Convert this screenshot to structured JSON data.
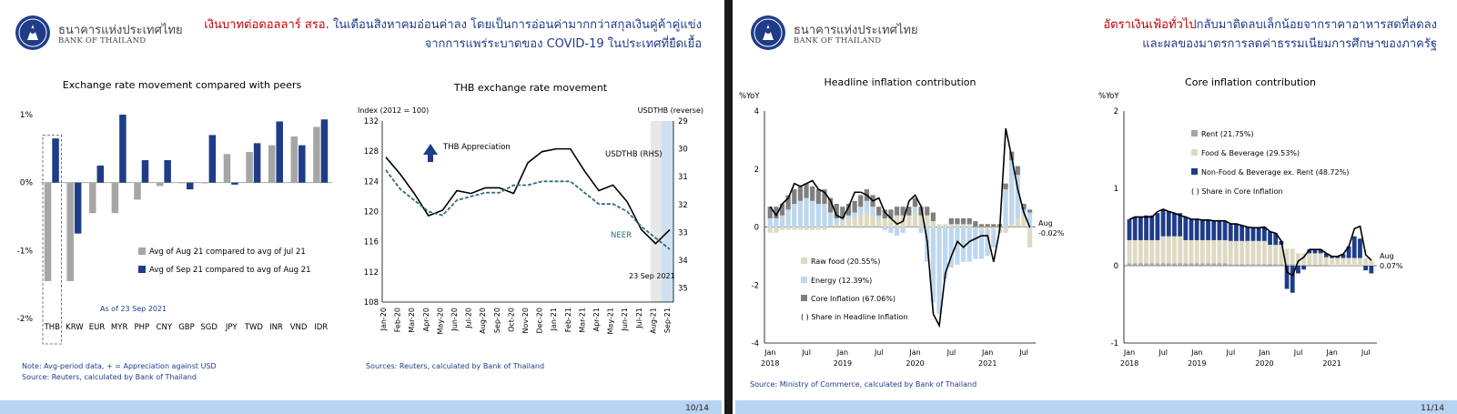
{
  "colors": {
    "navy": "#1f3c88",
    "gray": "#a6a6a6",
    "red": "#c00000",
    "teal": "#2e6d7a",
    "light_blue": "#bdd7ee",
    "beige": "#ddd9c3",
    "dark_gray": "#7f7f7f",
    "footer": "#b7d3f2"
  },
  "left": {
    "logo_th": "ธนาคารแห่งประเทศไทย",
    "logo_en": "BANK OF THAILAND",
    "headline_red": "เงินบาทต่อดอลลาร์ สรอ.",
    "headline_rest": " ในเดือนสิงหาคมอ่อนค่าลง โดยเป็นการอ่อนค่ามากกว่าสกุลเงินคู่ค้าคู่แข่ง",
    "headline_line2": "จากการแพร่ระบาดของ COVID-19 ในประเทศที่ยืดเยื้อ",
    "note1": "Note: Avg-period data, + = Appreciation against USD",
    "note2": "Source: Reuters, calculated by Bank of Thailand",
    "source_right": "Sources: Reuters, calculated by Bank of Thailand",
    "page": "10/14"
  },
  "right": {
    "logo_th": "ธนาคารแห่งประเทศไทย",
    "logo_en": "BANK OF THAILAND",
    "headline_red": "อัตราเงินเฟ้อทั่วไป",
    "headline_rest": "กลับมาติดลบเล็กน้อยจากราคาอาหารสดที่ลดลง",
    "headline_line2": "และผลของมาตรการลดค่าธรรมเนียมการศึกษาของภาครัฐ",
    "source": "Source: Ministry of Commerce, calculated by Bank of Thailand",
    "page": "11/14"
  },
  "chart_data": [
    {
      "type": "bar",
      "title": "Exchange rate movement compared with peers",
      "categories": [
        "THB",
        "KRW",
        "EUR",
        "MYR",
        "PHP",
        "CNY",
        "GBP",
        "SGD",
        "JPY",
        "TWD",
        "INR",
        "VND",
        "IDR"
      ],
      "series": [
        {
          "name": "Avg of Aug 21 compared to avg of Jul 21",
          "color": "#a6a6a6",
          "values": [
            -1.45,
            -1.45,
            -0.45,
            -0.45,
            -0.25,
            -0.05,
            0.0,
            0.0,
            0.42,
            0.45,
            0.55,
            0.68,
            0.82
          ]
        },
        {
          "name": "Avg of Sep 21 compared to avg of Aug 21",
          "color": "#1f3c88",
          "values": [
            0.65,
            -0.75,
            0.25,
            1.0,
            0.33,
            0.33,
            -0.1,
            0.7,
            -0.03,
            0.58,
            0.9,
            0.55,
            0.93
          ]
        }
      ],
      "yticks": [
        "1%",
        "0%",
        "-1%",
        "-2%"
      ],
      "ylim": [
        -2,
        1
      ],
      "annotation": "As of 23 Sep 2021",
      "legend": "lower-right"
    },
    {
      "type": "line",
      "title": "THB exchange rate movement",
      "ylabel_left": "Index (2012 = 100)",
      "ylabel_right": "USDTHB (reverse)",
      "ylim_left": [
        108,
        132
      ],
      "ylim_right": [
        35.5,
        29
      ],
      "yticks_left": [
        "132",
        "128",
        "124",
        "120",
        "116",
        "112",
        "108"
      ],
      "yticks_right": [
        "29",
        "30",
        "31",
        "32",
        "33",
        "34",
        "35"
      ],
      "x": [
        "Jan-20",
        "Feb-20",
        "Mar-20",
        "Apr-20",
        "May-20",
        "Jun-20",
        "Jul-20",
        "Aug-20",
        "Sep-20",
        "Oct-20",
        "Nov-20",
        "Dec-20",
        "Jan-21",
        "Feb-21",
        "Mar-21",
        "Apr-21",
        "May-21",
        "Jun-21",
        "Jul-21",
        "Aug-21",
        "Sep-21"
      ],
      "series": [
        {
          "name": "USDTHB (RHS)",
          "axis": "right",
          "color": "#000000",
          "values": [
            30.3,
            30.9,
            31.6,
            32.4,
            32.2,
            31.5,
            31.6,
            31.4,
            31.4,
            31.6,
            30.5,
            30.1,
            30.0,
            30.0,
            30.8,
            31.5,
            31.3,
            31.9,
            32.9,
            33.4,
            32.9
          ]
        },
        {
          "name": "NEER",
          "axis": "left",
          "color": "#2e6d7a",
          "values": [
            125.5,
            123.0,
            121.5,
            120.0,
            119.5,
            121.5,
            122.0,
            122.5,
            122.5,
            123.5,
            123.5,
            124.0,
            124.0,
            124.0,
            122.5,
            121.0,
            121.0,
            120.0,
            118.0,
            116.5,
            115.0
          ]
        }
      ],
      "annotations": [
        "THB Appreciation",
        "USDTHB (RHS)",
        "NEER",
        "23 Sep 2021"
      ]
    },
    {
      "type": "bar",
      "title": "Headline inflation contribution",
      "ylabel": "%YoY",
      "ylim": [
        -4,
        4
      ],
      "yticks": [
        "4",
        "2",
        "0",
        "-2",
        "-4"
      ],
      "x_labels": [
        "Jan",
        "Jul",
        "Jan",
        "Jul",
        "Jan",
        "Jul",
        "Jan",
        "Jul"
      ],
      "year_labels": [
        "2018",
        "2019",
        "2020",
        "2021"
      ],
      "months": [
        "2018-01",
        "2018-02",
        "2018-03",
        "2018-04",
        "2018-05",
        "2018-06",
        "2018-07",
        "2018-08",
        "2018-09",
        "2018-10",
        "2018-11",
        "2018-12",
        "2019-01",
        "2019-02",
        "2019-03",
        "2019-04",
        "2019-05",
        "2019-06",
        "2019-07",
        "2019-08",
        "2019-09",
        "2019-10",
        "2019-11",
        "2019-12",
        "2020-01",
        "2020-02",
        "2020-03",
        "2020-04",
        "2020-05",
        "2020-06",
        "2020-07",
        "2020-08",
        "2020-09",
        "2020-10",
        "2020-11",
        "2020-12",
        "2021-01",
        "2021-02",
        "2021-03",
        "2021-04",
        "2021-05",
        "2021-06",
        "2021-07",
        "2021-08"
      ],
      "series": [
        {
          "name": "Raw food (20.55%)",
          "color": "#ddd9c3",
          "values": [
            -0.2,
            -0.2,
            -0.1,
            -0.1,
            -0.1,
            -0.1,
            -0.1,
            -0.1,
            -0.1,
            -0.1,
            0.0,
            0.1,
            0.2,
            0.3,
            0.3,
            0.4,
            0.5,
            0.4,
            0.3,
            0.3,
            0.3,
            0.4,
            0.4,
            0.4,
            0.5,
            0.4,
            0.4,
            0.2,
            0.1,
            0.1,
            0.1,
            0.1,
            0.1,
            0.1,
            0.0,
            -0.1,
            -0.1,
            -0.1,
            -0.1,
            -0.2,
            0.1,
            0.3,
            0.4,
            -0.7
          ]
        },
        {
          "name": "Energy (12.39%)",
          "color": "#bdd7ee",
          "values": [
            0.3,
            0.3,
            0.4,
            0.6,
            0.8,
            0.9,
            1.0,
            0.9,
            0.8,
            0.8,
            0.5,
            0.2,
            0.1,
            0.1,
            0.2,
            0.3,
            0.4,
            0.3,
            0.1,
            -0.1,
            -0.2,
            -0.3,
            -0.2,
            0.0,
            0.2,
            -0.2,
            -1.2,
            -2.6,
            -3.0,
            -1.8,
            -1.4,
            -1.3,
            -1.2,
            -1.2,
            -1.1,
            -1.0,
            -0.9,
            -0.6,
            -0.1,
            1.3,
            2.2,
            1.5,
            0.2,
            0.5
          ]
        },
        {
          "name": "Core Inflation (67.06%)",
          "color": "#7f7f7f",
          "values": [
            0.4,
            0.4,
            0.4,
            0.5,
            0.5,
            0.5,
            0.5,
            0.5,
            0.5,
            0.5,
            0.5,
            0.5,
            0.4,
            0.4,
            0.4,
            0.4,
            0.4,
            0.4,
            0.3,
            0.3,
            0.3,
            0.3,
            0.3,
            0.3,
            0.3,
            0.3,
            0.3,
            0.3,
            0.0,
            0.0,
            0.2,
            0.2,
            0.2,
            0.2,
            0.2,
            0.1,
            0.1,
            0.1,
            0.1,
            0.2,
            0.3,
            0.3,
            0.2,
            0.1
          ]
        },
        {
          "name": "Headline",
          "color": "#000000",
          "values": [
            0.7,
            0.4,
            0.8,
            1.0,
            1.5,
            1.4,
            1.5,
            1.6,
            1.3,
            1.2,
            0.9,
            0.4,
            0.3,
            0.7,
            1.2,
            1.2,
            1.1,
            0.9,
            1.0,
            0.5,
            0.3,
            0.1,
            0.2,
            0.9,
            1.1,
            0.7,
            -0.5,
            -3.0,
            -3.4,
            -1.6,
            -1.0,
            -0.5,
            -0.7,
            -0.5,
            -0.4,
            -0.3,
            -0.3,
            -1.2,
            -0.1,
            3.4,
            2.4,
            1.3,
            0.5,
            -0.02
          ]
        }
      ],
      "annotations": [
        "( ) Share in Headline Inflation",
        "Aug",
        "-0.02%"
      ],
      "legend": "lower-left"
    },
    {
      "type": "bar",
      "title": "Core inflation contribution",
      "ylabel": "%YoY",
      "ylim": [
        -1,
        2
      ],
      "yticks": [
        "2",
        "1",
        "0",
        "-1"
      ],
      "x_labels": [
        "Jan",
        "Jul",
        "Jan",
        "Jul",
        "Jan",
        "Jul",
        "Jan",
        "Jul"
      ],
      "year_labels": [
        "2018",
        "2019",
        "2020",
        "2021"
      ],
      "series": [
        {
          "name": "Rent (21.75%)",
          "color": "#a6a6a6",
          "values": [
            0.03,
            0.03,
            0.03,
            0.03,
            0.03,
            0.03,
            0.03,
            0.03,
            0.03,
            0.03,
            0.03,
            0.03,
            0.03,
            0.03,
            0.03,
            0.03,
            0.03,
            0.03,
            0.02,
            0.02,
            0.02,
            0.02,
            0.02,
            0.02,
            0.02,
            0.02,
            0.02,
            0.02,
            0.02,
            0.02,
            0.01,
            0.01,
            0.01,
            0.01,
            0.01,
            0.01,
            0.0,
            0.0,
            0.0,
            0.0,
            0.0,
            0.0,
            0.0,
            0.0
          ]
        },
        {
          "name": "Food & Beverage (29.53%)",
          "color": "#ddd9c3",
          "values": [
            0.3,
            0.3,
            0.3,
            0.3,
            0.3,
            0.3,
            0.35,
            0.35,
            0.35,
            0.35,
            0.3,
            0.3,
            0.3,
            0.3,
            0.3,
            0.3,
            0.3,
            0.3,
            0.3,
            0.3,
            0.3,
            0.3,
            0.3,
            0.3,
            0.3,
            0.25,
            0.25,
            0.25,
            0.2,
            0.2,
            0.15,
            0.15,
            0.15,
            0.15,
            0.15,
            0.1,
            0.1,
            0.1,
            0.1,
            0.1,
            0.1,
            0.1,
            0.1,
            0.08
          ]
        },
        {
          "name": "Non-Food & Beverage ex. Rent (48.72%)",
          "color": "#1f3c88",
          "values": [
            0.27,
            0.3,
            0.3,
            0.32,
            0.32,
            0.35,
            0.35,
            0.32,
            0.3,
            0.3,
            0.3,
            0.28,
            0.28,
            0.26,
            0.26,
            0.25,
            0.25,
            0.25,
            0.22,
            0.22,
            0.2,
            0.18,
            0.17,
            0.17,
            0.18,
            0.17,
            0.15,
            0.05,
            -0.3,
            -0.35,
            -0.1,
            -0.05,
            0.05,
            0.05,
            0.05,
            0.05,
            0.02,
            0.02,
            0.05,
            0.15,
            0.28,
            0.25,
            -0.06,
            -0.1
          ]
        },
        {
          "name": "Core",
          "color": "#000000",
          "values": [
            0.6,
            0.63,
            0.63,
            0.63,
            0.63,
            0.7,
            0.73,
            0.7,
            0.68,
            0.65,
            0.63,
            0.6,
            0.6,
            0.59,
            0.59,
            0.58,
            0.58,
            0.58,
            0.54,
            0.54,
            0.52,
            0.5,
            0.49,
            0.49,
            0.5,
            0.44,
            0.42,
            0.32,
            -0.08,
            -0.13,
            0.06,
            0.11,
            0.21,
            0.21,
            0.21,
            0.16,
            0.12,
            0.12,
            0.15,
            0.25,
            0.48,
            0.51,
            0.14,
            0.07
          ]
        }
      ],
      "annotations": [
        "( ) Share in Core Inflation",
        "Aug",
        "0.07%"
      ],
      "legend": "upper-left"
    }
  ]
}
